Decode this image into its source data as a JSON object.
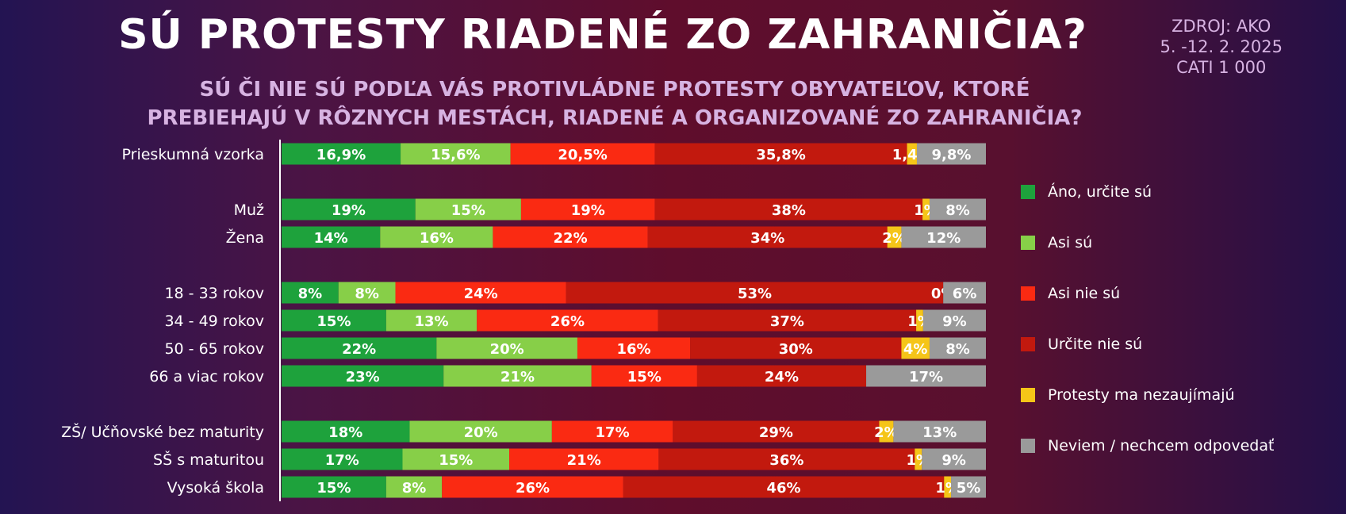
{
  "header": {
    "title": "SÚ PROTESTY RIADENÉ ZO ZAHRANIČIA?",
    "subtitle_line1": "SÚ ČI NIE SÚ PODĽA VÁS PROTIVLÁDNE PROTESTY OBYVATEĽOV, KTORÉ",
    "subtitle_line2": "PREBIEHAJÚ V RÔZNYCH MESTÁCH, RIADENÉ A ORGANIZOVANÉ  ZO ZAHRANIČIA?"
  },
  "source": {
    "line1": "ZDROJ: AKO",
    "line2": "5. -12. 2. 2025",
    "line3": "CATI 1 000"
  },
  "chart_data": {
    "type": "bar",
    "orientation": "horizontal",
    "stacked": "100%",
    "title": "SÚ PROTESTY RIADENÉ ZO ZAHRANIČIA?",
    "categories": [
      "Prieskumná vzorka",
      "Muž",
      "Žena",
      "18 - 33 rokov",
      "34 - 49 rokov",
      "50 - 65 rokov",
      "66 a viac rokov",
      "ZŠ/ Učňovské bez maturity",
      "SŠ s maturitou",
      "Vysoká škola"
    ],
    "groups": [
      [
        0
      ],
      [
        1,
        2
      ],
      [
        3,
        4,
        5,
        6
      ],
      [
        7,
        8,
        9
      ]
    ],
    "legend_position": "right",
    "series": [
      {
        "name": "Áno, určite sú",
        "color": "#1ea23c",
        "values": [
          16.9,
          19,
          14,
          8,
          15,
          22,
          23,
          18,
          17,
          15
        ],
        "labels": [
          "16,9%",
          "19%",
          "14%",
          "8%",
          "15%",
          "22%",
          "23%",
          "18%",
          "17%",
          "15%"
        ]
      },
      {
        "name": "Asi sú",
        "color": "#87cf48",
        "values": [
          15.6,
          15,
          16,
          8,
          13,
          20,
          21,
          20,
          15,
          8
        ],
        "labels": [
          "15,6%",
          "15%",
          "16%",
          "8%",
          "13%",
          "20%",
          "21%",
          "20%",
          "15%",
          "8%"
        ]
      },
      {
        "name": "Asi nie sú",
        "color": "#fa2a12",
        "values": [
          20.5,
          19,
          22,
          24,
          26,
          16,
          15,
          17,
          21,
          26
        ],
        "labels": [
          "20,5%",
          "19%",
          "22%",
          "24%",
          "26%",
          "16%",
          "15%",
          "17%",
          "21%",
          "26%"
        ]
      },
      {
        "name": "Určite nie sú",
        "color": "#c2190e",
        "values": [
          35.8,
          38,
          34,
          53,
          37,
          30,
          24,
          29,
          36,
          46
        ],
        "labels": [
          "35,8%",
          "38%",
          "34%",
          "53%",
          "37%",
          "30%",
          "24%",
          "29%",
          "36%",
          "46%"
        ]
      },
      {
        "name": "Protesty ma nezaujímajú",
        "color": "#f5c518",
        "values": [
          1.4,
          1,
          2,
          0,
          1,
          4,
          0,
          2,
          1,
          1
        ],
        "labels": [
          "1,4%",
          "1%",
          "2%",
          "0%",
          "1%",
          "4%",
          "",
          "2%",
          "1%",
          "1%"
        ]
      },
      {
        "name": "Neviem / nechcem odpovedať",
        "color": "#9a9a9a",
        "values": [
          9.8,
          8,
          12,
          6,
          9,
          8,
          17,
          13,
          9,
          5
        ],
        "labels": [
          "9,8%",
          "8%",
          "12%",
          "6%",
          "9%",
          "8%",
          "17%",
          "13%",
          "9%",
          "5%"
        ]
      }
    ]
  }
}
